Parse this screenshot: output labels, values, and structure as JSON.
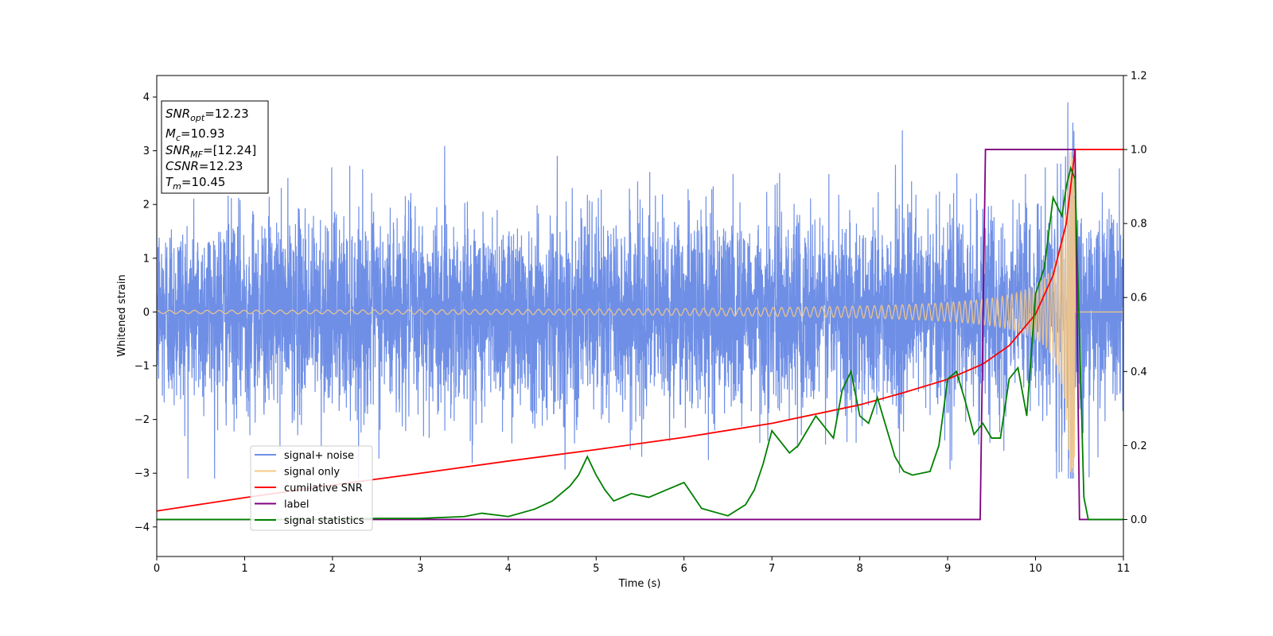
{
  "chart_data": {
    "type": "line",
    "xlabel": "Time (s)",
    "ylabel": "Whitened strain",
    "xlim": [
      0,
      11
    ],
    "ylim_left": [
      -4.55,
      4.4
    ],
    "ylim_right": [
      -0.1,
      1.2
    ],
    "x_ticks": [
      "0",
      "1",
      "2",
      "3",
      "4",
      "5",
      "6",
      "7",
      "8",
      "9",
      "10",
      "11"
    ],
    "y_ticks_left": [
      "−4",
      "−3",
      "−2",
      "−1",
      "0",
      "1",
      "2",
      "3",
      "4"
    ],
    "y_ticks_right": [
      "0.0",
      "0.2",
      "0.4",
      "0.6",
      "0.8",
      "1.0",
      "1.2"
    ],
    "legend": {
      "placement": "lower-left",
      "entries": [
        {
          "label": "signal+ noise",
          "color": "#6f8fe6"
        },
        {
          "label": "signal only",
          "color": "#f5c987"
        },
        {
          "label": "cumilative SNR",
          "color": "#ff0000"
        },
        {
          "label": "label",
          "color": "#800080"
        },
        {
          "label": "signal statistics",
          "color": "#008000"
        }
      ]
    },
    "annotation": {
      "snr_opt": {
        "base": "SNR",
        "sub": "opt",
        "value": "=12.23"
      },
      "mc": {
        "base": "M",
        "sub": "c",
        "value": "=10.93"
      },
      "snr_mf": {
        "base": "SNR",
        "sub": "MF",
        "value": "=[12.24]"
      },
      "csnr": {
        "base": "CSNR",
        "value": "=12.23"
      },
      "tm": {
        "base": "T",
        "sub": "m",
        "value": "=10.45"
      }
    },
    "series": [
      {
        "name": "signal+ noise",
        "axis": "left",
        "color": "#6f8fe6",
        "noise_std": 0.9,
        "noise_min": -3.1,
        "noise_max": 3.9,
        "duration": [
          0,
          11
        ]
      },
      {
        "name": "signal only",
        "axis": "left",
        "color": "#f5c987",
        "chirp_start": 0,
        "merger_time": 10.45,
        "amplitude_at_merger": 3.0,
        "amplitude_early": 0.03
      },
      {
        "name": "cumilative SNR",
        "axis": "right",
        "color": "#ff0000",
        "x": [
          0,
          1,
          2,
          3,
          4,
          5,
          6,
          7,
          8,
          8.5,
          9,
          9.4,
          9.7,
          10,
          10.2,
          10.35,
          10.45,
          11
        ],
        "y": [
          0.023,
          0.059,
          0.093,
          0.125,
          0.158,
          0.189,
          0.222,
          0.26,
          0.31,
          0.343,
          0.379,
          0.42,
          0.47,
          0.555,
          0.66,
          0.8,
          1.0,
          1.0
        ]
      },
      {
        "name": "label",
        "axis": "right",
        "color": "#800080",
        "x": [
          0,
          9.37,
          9.43,
          10.45,
          10.5,
          11
        ],
        "y": [
          0.0,
          0.0,
          1.0,
          1.0,
          0.0,
          0.0
        ]
      },
      {
        "name": "signal statistics",
        "axis": "right",
        "color": "#008000",
        "x": [
          0,
          1,
          2,
          2.5,
          3,
          3.5,
          3.7,
          4,
          4.3,
          4.5,
          4.7,
          4.8,
          4.9,
          5.0,
          5.1,
          5.2,
          5.4,
          5.6,
          5.8,
          6.0,
          6.2,
          6.5,
          6.7,
          6.8,
          6.9,
          7.0,
          7.2,
          7.3,
          7.5,
          7.7,
          7.8,
          7.9,
          8.0,
          8.1,
          8.2,
          8.4,
          8.5,
          8.6,
          8.8,
          8.9,
          9.0,
          9.1,
          9.2,
          9.3,
          9.4,
          9.5,
          9.6,
          9.7,
          9.8,
          9.9,
          10.0,
          10.1,
          10.2,
          10.3,
          10.35,
          10.4,
          10.45,
          10.5,
          10.55,
          10.6,
          11
        ],
        "y": [
          0.0,
          0.0,
          0.0,
          0.003,
          0.003,
          0.008,
          0.017,
          0.008,
          0.028,
          0.05,
          0.09,
          0.12,
          0.17,
          0.12,
          0.08,
          0.05,
          0.07,
          0.06,
          0.08,
          0.1,
          0.03,
          0.01,
          0.04,
          0.08,
          0.15,
          0.24,
          0.18,
          0.2,
          0.28,
          0.22,
          0.35,
          0.4,
          0.28,
          0.26,
          0.33,
          0.17,
          0.13,
          0.12,
          0.13,
          0.2,
          0.38,
          0.4,
          0.32,
          0.23,
          0.26,
          0.22,
          0.22,
          0.38,
          0.41,
          0.28,
          0.61,
          0.68,
          0.87,
          0.82,
          0.9,
          0.95,
          0.92,
          0.5,
          0.06,
          0.0,
          0.0
        ]
      }
    ]
  }
}
